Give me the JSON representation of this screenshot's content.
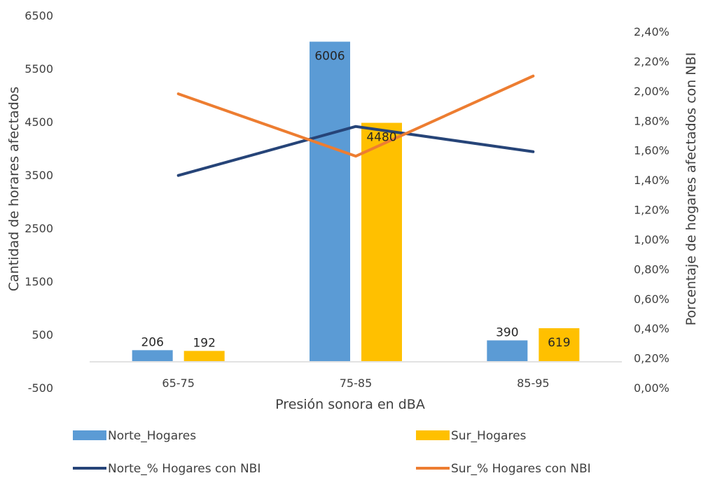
{
  "chart_data": {
    "type": "bar",
    "categories": [
      "65-75",
      "75-85",
      "85-95"
    ],
    "xlabel": "Presión sonora en dBA",
    "ylabel": "Cantidad de horares afectados",
    "y2label": "Porcentaje de hogares afectados con NBI",
    "ylim": [
      -500,
      6500
    ],
    "yticks": [
      "-500",
      "500",
      "1500",
      "2500",
      "3500",
      "4500",
      "5500",
      "6500"
    ],
    "y2lim": [
      0,
      2.4
    ],
    "y2ticks": [
      "0,00%",
      "0,20%",
      "0,40%",
      "0,60%",
      "0,80%",
      "1,00%",
      "1,20%",
      "1,40%",
      "1,60%",
      "1,80%",
      "2,00%",
      "2,20%",
      "2,40%"
    ],
    "grid": false,
    "legend_position": "bottom",
    "bar_series": [
      {
        "name": "Norte_Hogares",
        "values": [
          206,
          6006,
          390
        ],
        "labels": [
          "206",
          "6006",
          "390"
        ],
        "color": "#5B9BD5"
      },
      {
        "name": "Sur_Hogares",
        "values": [
          192,
          4480,
          619
        ],
        "labels": [
          "192",
          "4480",
          "619"
        ],
        "color": "#FFC000"
      }
    ],
    "line_series": [
      {
        "name": "Norte_% Hogares con NBI",
        "values": [
          1.43,
          1.76,
          1.59
        ],
        "axis": "secondary",
        "color": "#264478"
      },
      {
        "name": "Sur_% Hogares con NBI",
        "values": [
          1.98,
          1.56,
          2.1
        ],
        "axis": "secondary",
        "color": "#ED7D31"
      }
    ]
  }
}
